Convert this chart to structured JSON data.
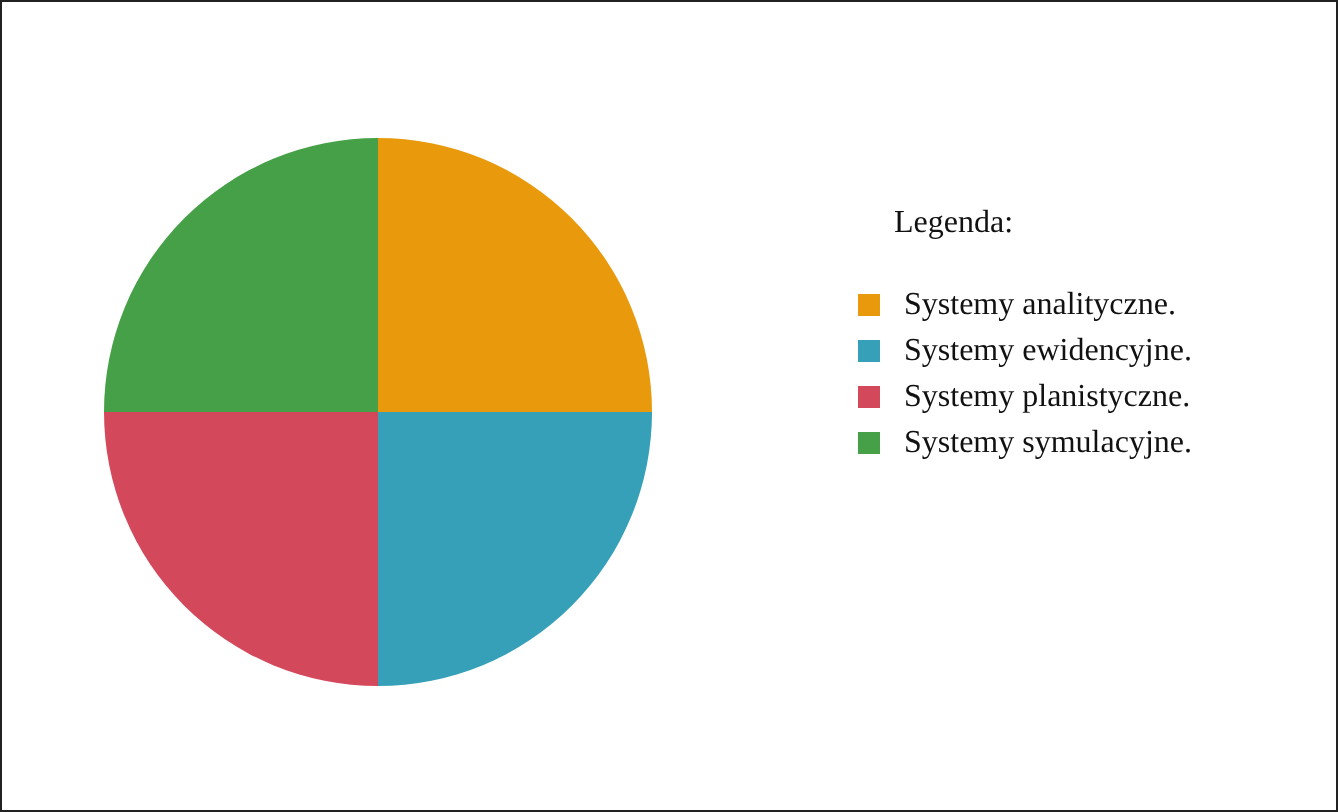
{
  "chart_data": {
    "type": "pie",
    "legend_title": "Legenda:",
    "legend": "right",
    "categories": [
      "Systemy analityczne.",
      "Systemy ewidencyjne.",
      "Systemy planistyczne.",
      "Systemy symulacyjne."
    ],
    "values": [
      25,
      25,
      25,
      25
    ],
    "colors": [
      "#e89a0c",
      "#35a0b8",
      "#d4485c",
      "#46a047"
    ]
  }
}
